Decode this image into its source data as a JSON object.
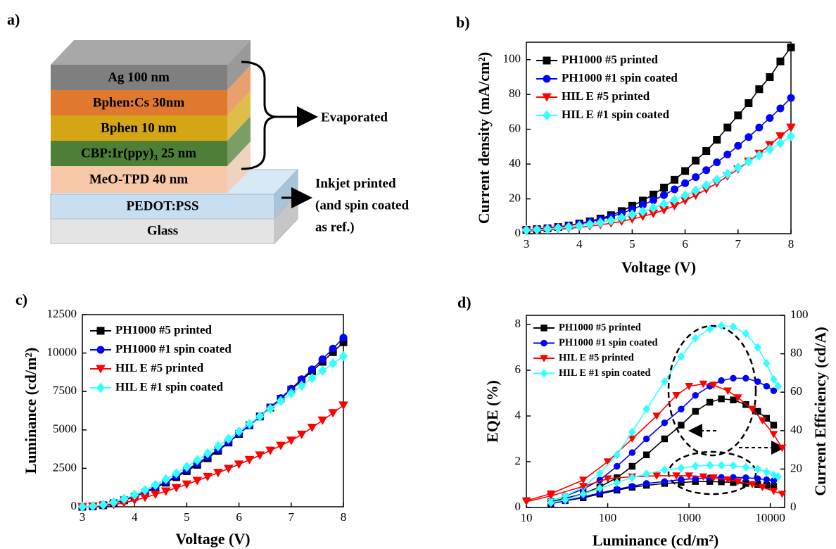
{
  "diagram": {
    "label": "a)",
    "layers": [
      "Ag  100 nm",
      "Bphen:Cs   30nm",
      "Bphen  10 nm",
      "CBP:Ir(ppy)₃ 25 nm",
      "MeO-TPD  40 nm",
      "PEDOT:PSS",
      "Glass"
    ],
    "evaporated": "Evaporated",
    "inkjet": [
      "Inkjet printed",
      "(and spin coated",
      "as ref.)"
    ]
  },
  "chart_data": [
    {
      "type": "line",
      "label": "b)",
      "x_label": "Voltage (V)",
      "y_label": "Current density (mA/cm²)",
      "xlim": [
        3,
        8
      ],
      "xticks": [
        3,
        4,
        5,
        6,
        7,
        8
      ],
      "ylim": [
        0,
        110
      ],
      "yticks": [
        0,
        20,
        40,
        60,
        80,
        100
      ],
      "x": [
        3,
        3.2,
        3.4,
        3.6,
        3.8,
        4,
        4.2,
        4.4,
        4.6,
        4.8,
        5,
        5.2,
        5.4,
        5.6,
        5.8,
        6,
        6.2,
        6.4,
        6.6,
        6.8,
        7,
        7.2,
        7.4,
        7.6,
        7.8,
        8
      ],
      "series": [
        {
          "name": "PH1000 #5 printed",
          "color": "#000000",
          "marker": "square",
          "values": [
            2.2,
            2.6,
            3.1,
            3.8,
            4.7,
            5.8,
            7.1,
            8.7,
            10.6,
            13,
            16,
            19,
            22.5,
            26.5,
            31,
            36,
            42,
            47.5,
            54,
            61,
            68,
            75,
            83,
            90,
            99,
            107
          ]
        },
        {
          "name": "PH1000 #1 spin coated",
          "color": "#0000ff",
          "marker": "circle",
          "values": [
            2.3,
            2.7,
            3.2,
            3.8,
            4.6,
            5.6,
            6.8,
            8.2,
            9.8,
            11.7,
            14,
            16.5,
            19.2,
            22.2,
            25.5,
            29,
            32.5,
            36.5,
            41,
            45.5,
            50.5,
            55.5,
            61,
            66.5,
            72,
            78
          ]
        },
        {
          "name": "HIL E #5 printed",
          "color": "#ff0000",
          "marker": "triangle-down",
          "values": [
            1.5,
            1.8,
            2.1,
            2.5,
            3,
            3.6,
            4.3,
            5.1,
            6,
            7.1,
            8.4,
            9.9,
            11.6,
            13.6,
            16,
            19,
            22,
            25.5,
            29,
            33,
            37,
            41.5,
            46,
            51,
            56,
            61
          ]
        },
        {
          "name": "HIL E #1 spin coated",
          "color": "#33ffff",
          "marker": "diamond",
          "values": [
            2,
            2.3,
            2.7,
            3.2,
            3.8,
            4.5,
            5.4,
            6.4,
            7.6,
            9.1,
            11,
            12.8,
            14.8,
            17,
            19.4,
            22,
            24.8,
            27.8,
            31,
            34.4,
            38,
            41.5,
            45,
            48.5,
            52,
            56
          ]
        }
      ]
    },
    {
      "type": "line",
      "label": "c)",
      "x_label": "Voltage (V)",
      "y_label": "Luminance (cd/m²)",
      "xlim": [
        3,
        8
      ],
      "xticks": [
        3,
        4,
        5,
        6,
        7,
        8
      ],
      "ylim": [
        0,
        12500
      ],
      "yticks": [
        0,
        2500,
        5000,
        7500,
        10000,
        12500
      ],
      "x": [
        3,
        3.2,
        3.4,
        3.6,
        3.8,
        4,
        4.2,
        4.4,
        4.6,
        4.8,
        5,
        5.2,
        5.4,
        5.6,
        5.8,
        6,
        6.2,
        6.4,
        6.6,
        6.8,
        7,
        7.2,
        7.4,
        7.6,
        7.8,
        8
      ],
      "series": [
        {
          "name": "PH1000 #5 printed",
          "color": "#000000",
          "marker": "square",
          "values": [
            0,
            30,
            100,
            230,
            420,
            650,
            920,
            1230,
            1570,
            1930,
            2320,
            2730,
            3160,
            3640,
            4180,
            4740,
            5300,
            5870,
            6450,
            7030,
            7620,
            8220,
            8820,
            9430,
            10060,
            10700
          ]
        },
        {
          "name": "PH1000 #1 spin coated",
          "color": "#0000ff",
          "marker": "circle",
          "values": [
            0,
            30,
            100,
            240,
            440,
            680,
            960,
            1280,
            1630,
            2000,
            2400,
            2820,
            3260,
            3720,
            4200,
            4750,
            5300,
            5880,
            6470,
            7070,
            7680,
            8300,
            8940,
            9600,
            10290,
            11000
          ]
        },
        {
          "name": "HIL E #5 printed",
          "color": "#ff0000",
          "marker": "triangle-down",
          "values": [
            0,
            20,
            60,
            140,
            260,
            420,
            600,
            800,
            1010,
            1230,
            1460,
            1700,
            1950,
            2210,
            2480,
            2760,
            3050,
            3350,
            3660,
            3980,
            4310,
            4700,
            5150,
            5620,
            6100,
            6600
          ]
        },
        {
          "name": "HIL E #1 spin coated",
          "color": "#33ffff",
          "marker": "diamond",
          "values": [
            0,
            40,
            130,
            290,
            510,
            780,
            1080,
            1420,
            1790,
            2180,
            2600,
            3030,
            3480,
            3940,
            4420,
            4900,
            5390,
            5880,
            6380,
            6880,
            7380,
            7880,
            8370,
            8850,
            9330,
            9800
          ]
        }
      ]
    },
    {
      "type": "line",
      "label": "d)",
      "x_label": "Luminance (cd/m²)",
      "y_label": "EQE (%)",
      "y2_label": "Current Efficiency (cd/A)",
      "xlog": true,
      "xlim": [
        10,
        15000
      ],
      "xticks": [
        10,
        100,
        1000,
        10000
      ],
      "ylim": [
        0,
        8.4
      ],
      "yticks": [
        0,
        2,
        4,
        6,
        8
      ],
      "y2lim": [
        0,
        100
      ],
      "y2ticks": [
        0,
        20,
        40,
        60,
        80,
        100
      ],
      "series": [
        {
          "name": "PH1000 #5 printed",
          "color": "#000000",
          "marker": "square",
          "x": [
            20,
            30,
            50,
            80,
            130,
            200,
            300,
            500,
            800,
            1200,
            1800,
            2500,
            3500,
            5000,
            7000,
            9000,
            11000
          ],
          "values": [
            0.25,
            0.4,
            0.6,
            0.9,
            1.3,
            1.8,
            2.3,
            3,
            3.6,
            4.2,
            4.6,
            4.75,
            4.7,
            4.5,
            4.2,
            3.9,
            3.6
          ]
        },
        {
          "name": "PH1000 #1 spin coated",
          "color": "#0000ff",
          "marker": "circle",
          "x": [
            20,
            30,
            50,
            80,
            130,
            200,
            300,
            500,
            800,
            1200,
            1800,
            2500,
            3500,
            5000,
            7000,
            9000,
            11000
          ],
          "values": [
            0.3,
            0.5,
            0.8,
            1.2,
            1.8,
            2.4,
            3,
            3.7,
            4.3,
            4.9,
            5.3,
            5.55,
            5.65,
            5.65,
            5.5,
            5.3,
            5.1
          ]
        },
        {
          "name": "HIL E #5 printed",
          "color": "#ff0000",
          "marker": "triangle-down",
          "x": [
            10,
            20,
            50,
            100,
            200,
            400,
            700,
            1000,
            1500,
            2000,
            3000,
            4000,
            6000,
            8000,
            11000,
            14000
          ],
          "values": [
            0.3,
            0.6,
            1.2,
            2,
            3,
            4,
            4.9,
            5.3,
            5.4,
            5.35,
            5.1,
            4.8,
            4.3,
            3.8,
            3.2,
            2.6
          ]
        },
        {
          "name": "HIL E #1 spin coated",
          "color": "#33ffff",
          "marker": "diamond",
          "x": [
            20,
            30,
            50,
            80,
            130,
            200,
            300,
            500,
            800,
            1200,
            1800,
            2500,
            3500,
            5000,
            7000,
            9000,
            11000,
            12500
          ],
          "values": [
            0.3,
            0.5,
            0.9,
            1.5,
            2.3,
            3.3,
            4.3,
            5.5,
            6.6,
            7.4,
            7.8,
            7.95,
            7.9,
            7.6,
            7,
            6.3,
            5.6,
            5.3
          ]
        },
        {
          "color": "#000000",
          "marker": "square",
          "axis": "y2",
          "x": [
            20,
            30,
            50,
            80,
            130,
            200,
            300,
            500,
            800,
            1200,
            1800,
            2500,
            3500,
            5000,
            7000,
            9000,
            11000
          ],
          "values": [
            2,
            3.5,
            5,
            7,
            9,
            10.5,
            11.5,
            12.5,
            13,
            13.5,
            13.5,
            13.3,
            13,
            12.5,
            12,
            11.5,
            11
          ]
        },
        {
          "color": "#0000ff",
          "marker": "circle",
          "axis": "y2",
          "x": [
            20,
            30,
            50,
            80,
            130,
            200,
            300,
            500,
            800,
            1200,
            1800,
            2500,
            3500,
            5000,
            7000,
            9000,
            11000
          ],
          "values": [
            2,
            3.5,
            5.5,
            7.5,
            9.5,
            11,
            12.5,
            13.5,
            14.5,
            15,
            15.5,
            15.7,
            15.7,
            15.5,
            15,
            14.5,
            14
          ]
        },
        {
          "color": "#ff0000",
          "marker": "triangle-down",
          "axis": "y2",
          "x": [
            10,
            20,
            50,
            100,
            200,
            400,
            700,
            1000,
            1500,
            2000,
            3000,
            4000,
            6000,
            8000,
            11000,
            14000
          ],
          "values": [
            3,
            6,
            11,
            15,
            16,
            16.5,
            16.5,
            16.5,
            16,
            15.5,
            14.5,
            13.5,
            12,
            10.5,
            8.5,
            7
          ]
        },
        {
          "color": "#33ffff",
          "marker": "diamond",
          "axis": "y2",
          "x": [
            20,
            30,
            50,
            80,
            130,
            200,
            300,
            500,
            800,
            1200,
            1800,
            2500,
            3500,
            5000,
            7000,
            9000,
            11000,
            12500
          ],
          "values": [
            2.5,
            4,
            7,
            10,
            13,
            15.5,
            17.5,
            19.5,
            20.5,
            21.5,
            22,
            22,
            21.8,
            21,
            20,
            18.5,
            17,
            16
          ]
        }
      ]
    }
  ]
}
